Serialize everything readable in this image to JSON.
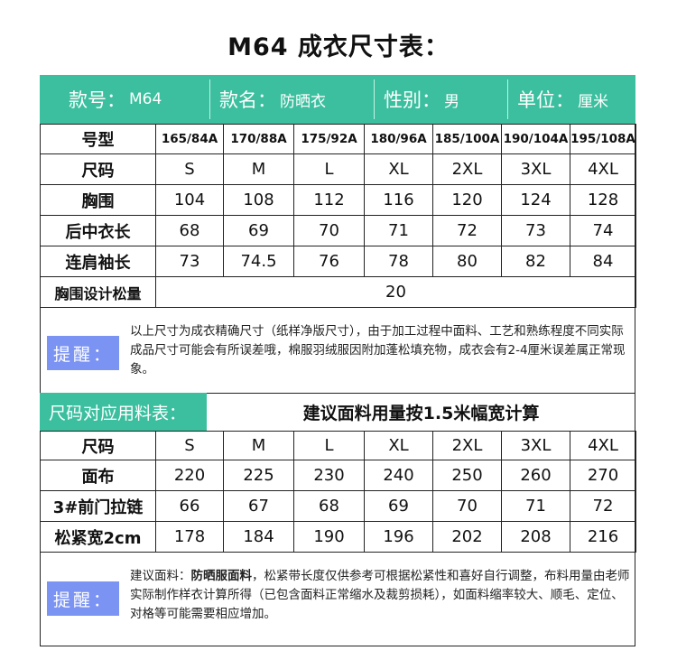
{
  "title": "M64 成衣尺寸表：",
  "header": [
    {
      "label": "款号：",
      "value": "M64"
    },
    {
      "label": "款名：",
      "value": "防晒衣"
    },
    {
      "label": "性别：",
      "value": "男"
    },
    {
      "label": "单位：",
      "value": "厘米"
    }
  ],
  "size_table": {
    "rows": [
      {
        "label": "号型",
        "cells": [
          "165/84A",
          "170/88A",
          "175/92A",
          "180/96A",
          "185/100A",
          "190/104A",
          "195/108A"
        ]
      },
      {
        "label": "尺码",
        "cells": [
          "S",
          "M",
          "L",
          "XL",
          "2XL",
          "3XL",
          "4XL"
        ]
      },
      {
        "label": "胸围",
        "cells": [
          "104",
          "108",
          "112",
          "116",
          "120",
          "124",
          "128"
        ]
      },
      {
        "label": "后中衣长",
        "cells": [
          "68",
          "69",
          "70",
          "71",
          "72",
          "73",
          "74"
        ]
      },
      {
        "label": "连肩袖长",
        "cells": [
          "73",
          "74.5",
          "76",
          "78",
          "80",
          "82",
          "84"
        ]
      }
    ],
    "ease": {
      "label": "胸围设计松量",
      "value": "20"
    }
  },
  "note1": {
    "tag": "提醒：",
    "text": "以上尺寸为成衣精确尺寸（纸样净版尺寸），由于加工过程中面料、工艺和熟练程度不同实际成品尺寸可能会有所误差哦，棉服羽绒服因附加蓬松填充物，成衣会有2-4厘米误差属正常现象。"
  },
  "section": {
    "label": "尺码对应用料表：",
    "subtitle": "建议面料用量按1.5米幅宽计算"
  },
  "fabric_table": {
    "rows": [
      {
        "label": "尺码",
        "cells": [
          "S",
          "M",
          "L",
          "XL",
          "2XL",
          "3XL",
          "4XL"
        ]
      },
      {
        "label": "面布",
        "cells": [
          "220",
          "225",
          "230",
          "240",
          "250",
          "260",
          "270"
        ]
      },
      {
        "label": "3#前门拉链",
        "cells": [
          "66",
          "67",
          "68",
          "69",
          "70",
          "71",
          "72"
        ]
      },
      {
        "label": "松紧宽2cm",
        "cells": [
          "178",
          "184",
          "190",
          "196",
          "202",
          "208",
          "216"
        ]
      }
    ]
  },
  "note2": {
    "tag": "提醒：",
    "prefix": "建议面料：",
    "bold": "防晒服面料",
    "text": "，松紧带长度仅供参考可根据松紧性和喜好自行调整，布料用量由老师实际制作样衣计算所得（已包含面料正常缩水及裁剪损耗），如面料缩率较大、顺毛、定位、对格等可能需要相应增加。"
  },
  "colors": {
    "green": "#3bbf9e",
    "tip": "#7b93f2"
  }
}
